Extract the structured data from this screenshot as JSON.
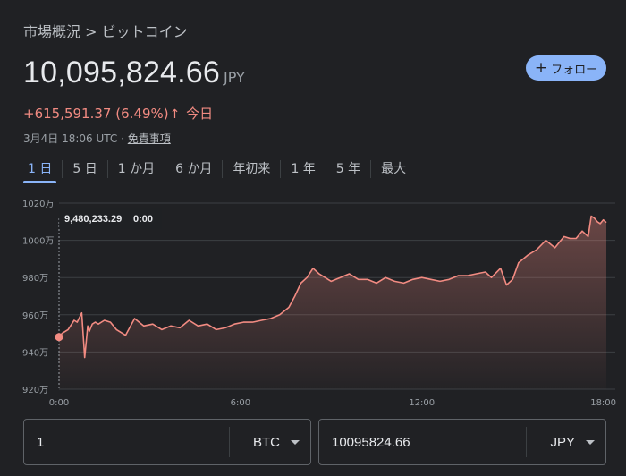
{
  "breadcrumb": "市場概況 > ビットコイン",
  "price": {
    "value": "10,095,824.66",
    "currency": "JPY"
  },
  "follow": {
    "icon": "plus-icon",
    "label": "フォロー"
  },
  "change": {
    "amount": "+615,591.37",
    "percent": "(6.49%)",
    "arrow": "↑",
    "period": "今日"
  },
  "meta": {
    "timestamp": "3月4日 18:06 UTC",
    "separator": "·",
    "disclaimer": "免責事項"
  },
  "tabs": [
    "1 日",
    "5 日",
    "1 か月",
    "6 か月",
    "年初来",
    "1 年",
    "5 年",
    "最大"
  ],
  "active_tab": "1 日",
  "colors": {
    "background": "#202124",
    "line": "#f28b82",
    "accent": "#8ab4f8",
    "grid": "#3c4043"
  },
  "chart_data": {
    "type": "line",
    "ylabels": [
      "1020万",
      "1000万",
      "980万",
      "960万",
      "940万",
      "920万"
    ],
    "y_ticks": [
      10200000,
      10000000,
      9800000,
      9600000,
      9400000,
      9200000
    ],
    "ylim": [
      9200000,
      10200000
    ],
    "xlabels": [
      "0:00",
      "6:00",
      "12:00",
      "18:00"
    ],
    "x_ticks": [
      0,
      6,
      12,
      18
    ],
    "xlim": [
      0,
      18.1
    ],
    "tooltip": {
      "value": "9,480,233.29",
      "time": "0:00"
    },
    "series": [
      {
        "x": [
          0,
          0.1,
          0.3,
          0.5,
          0.6,
          0.75,
          0.85,
          0.95,
          1.0,
          1.1,
          1.2,
          1.3,
          1.5,
          1.7,
          1.9,
          2.2,
          2.5,
          2.8,
          3.1,
          3.4,
          3.7,
          4.0,
          4.3,
          4.6,
          4.9,
          5.2,
          5.5,
          5.8,
          6.1,
          6.4,
          6.7,
          7.0,
          7.3,
          7.6,
          7.8,
          8.0,
          8.2,
          8.4,
          8.6,
          8.8,
          9.0,
          9.3,
          9.6,
          9.9,
          10.2,
          10.5,
          10.8,
          11.1,
          11.4,
          11.7,
          12.0,
          12.3,
          12.6,
          12.9,
          13.2,
          13.5,
          13.8,
          14.1,
          14.3,
          14.6,
          14.8,
          15.0,
          15.2,
          15.5,
          15.8,
          16.1,
          16.4,
          16.7,
          16.9,
          17.1,
          17.3,
          17.5,
          17.6,
          17.7,
          17.8,
          17.9,
          18.0,
          18.1
        ],
        "y": [
          9480233,
          9500000,
          9520000,
          9570000,
          9560000,
          9610000,
          9370000,
          9540000,
          9510000,
          9550000,
          9560000,
          9550000,
          9570000,
          9560000,
          9520000,
          9490000,
          9580000,
          9540000,
          9550000,
          9520000,
          9540000,
          9530000,
          9570000,
          9540000,
          9550000,
          9520000,
          9530000,
          9550000,
          9560000,
          9560000,
          9570000,
          9580000,
          9600000,
          9640000,
          9700000,
          9770000,
          9800000,
          9850000,
          9820000,
          9800000,
          9780000,
          9800000,
          9820000,
          9790000,
          9790000,
          9770000,
          9800000,
          9780000,
          9770000,
          9790000,
          9800000,
          9790000,
          9780000,
          9790000,
          9810000,
          9810000,
          9820000,
          9830000,
          9800000,
          9850000,
          9760000,
          9790000,
          9880000,
          9920000,
          9950000,
          10000000,
          9960000,
          10020000,
          10010000,
          10010000,
          10050000,
          10020000,
          10130000,
          10120000,
          10100000,
          10090000,
          10110000,
          10095825
        ]
      }
    ]
  },
  "converter": {
    "from": {
      "amount": "1",
      "unit": "BTC"
    },
    "to": {
      "amount": "10095824.66",
      "unit": "JPY"
    }
  }
}
